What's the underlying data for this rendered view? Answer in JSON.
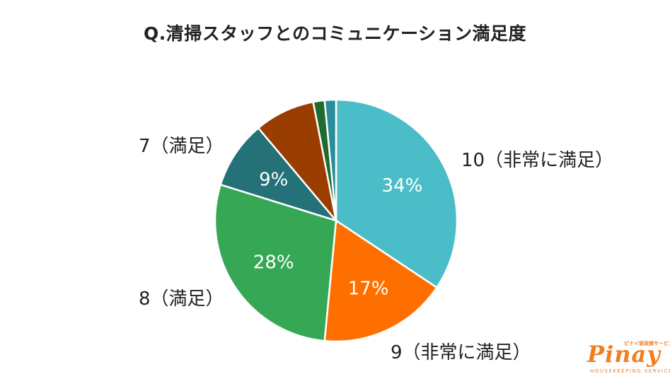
{
  "chart_data": {
    "type": "pie",
    "title": "Q.清掃スタッフとのコミュニケーション満足度",
    "slices": [
      {
        "name": "10（非常に満足）",
        "value": 34,
        "label": "34%",
        "color": "#4bbdc9"
      },
      {
        "name": "9（非常に満足）",
        "value": 17,
        "label": "17%",
        "color": "#ff6f00"
      },
      {
        "name": "8（満足）",
        "value": 28,
        "label": "28%",
        "color": "#36a855"
      },
      {
        "name": "7（満足）",
        "value": 9,
        "label": "9%",
        "color": "#247178"
      },
      {
        "name": "",
        "value": 8,
        "label": "",
        "color": "#9a3d00"
      },
      {
        "name": "",
        "value": 1.5,
        "label": "",
        "color": "#1f6b30"
      },
      {
        "name": "",
        "value": 1.5,
        "label": "",
        "color": "#2a8d9a"
      }
    ],
    "start": "12 o'clock",
    "direction": "clockwise",
    "legend": "none"
  },
  "logo": {
    "text": "Pinay",
    "tagline": "ピナイ家政婦サービス",
    "subtext": "HOUSEKEEPING SERVICE"
  }
}
